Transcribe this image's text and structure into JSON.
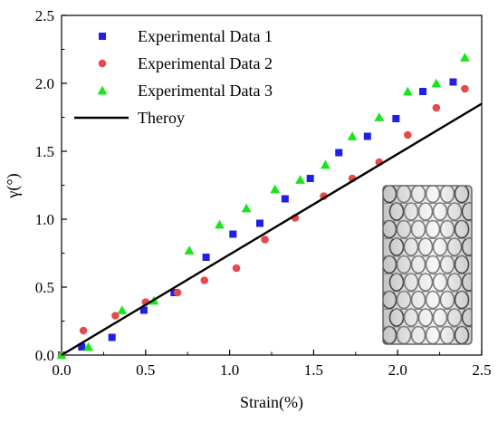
{
  "chart_data": {
    "type": "scatter",
    "title": "",
    "xlabel": "Strain(%)",
    "ylabel": "γ(°)",
    "xlim": [
      0,
      2.5
    ],
    "ylim": [
      0,
      2.5
    ],
    "x_ticks": [
      "0.0",
      "0.5",
      "1.0",
      "1.5",
      "2.0",
      "2.5"
    ],
    "y_ticks": [
      "0.0",
      "0.5",
      "1.0",
      "1.5",
      "2.0",
      "2.5"
    ],
    "x_tick_values": [
      0,
      0.5,
      1.0,
      1.5,
      2.0,
      2.5
    ],
    "y_tick_values": [
      0,
      0.5,
      1.0,
      1.5,
      2.0,
      2.5
    ],
    "grid": false,
    "legend_position": "top-left",
    "inset_image": "nanotube-structure",
    "series": [
      {
        "name": "Experimental Data 1",
        "marker": "square",
        "color": "#1f1fe6",
        "points": [
          [
            0.0,
            0.0
          ],
          [
            0.12,
            0.06
          ],
          [
            0.3,
            0.13
          ],
          [
            0.49,
            0.33
          ],
          [
            0.67,
            0.46
          ],
          [
            0.86,
            0.72
          ],
          [
            1.02,
            0.89
          ],
          [
            1.18,
            0.97
          ],
          [
            1.33,
            1.15
          ],
          [
            1.48,
            1.3
          ],
          [
            1.65,
            1.49
          ],
          [
            1.82,
            1.61
          ],
          [
            1.99,
            1.74
          ],
          [
            2.15,
            1.94
          ],
          [
            2.33,
            2.01
          ]
        ]
      },
      {
        "name": "Experimental Data 2",
        "marker": "circle",
        "color": "#e64a4a",
        "points": [
          [
            0.0,
            0.0
          ],
          [
            0.13,
            0.18
          ],
          [
            0.32,
            0.29
          ],
          [
            0.5,
            0.39
          ],
          [
            0.69,
            0.46
          ],
          [
            0.85,
            0.55
          ],
          [
            1.04,
            0.64
          ],
          [
            1.21,
            0.85
          ],
          [
            1.39,
            1.01
          ],
          [
            1.56,
            1.17
          ],
          [
            1.73,
            1.3
          ],
          [
            1.89,
            1.42
          ],
          [
            2.06,
            1.62
          ],
          [
            2.23,
            1.82
          ],
          [
            2.4,
            1.96
          ]
        ]
      },
      {
        "name": "Experimental Data 3",
        "marker": "triangle",
        "color": "#19e619",
        "points": [
          [
            0.0,
            0.0
          ],
          [
            0.16,
            0.06
          ],
          [
            0.36,
            0.33
          ],
          [
            0.55,
            0.4
          ],
          [
            0.76,
            0.77
          ],
          [
            0.94,
            0.96
          ],
          [
            1.1,
            1.08
          ],
          [
            1.27,
            1.22
          ],
          [
            1.42,
            1.29
          ],
          [
            1.57,
            1.4
          ],
          [
            1.73,
            1.61
          ],
          [
            1.89,
            1.75
          ],
          [
            2.06,
            1.94
          ],
          [
            2.23,
            2.0
          ],
          [
            2.4,
            2.19
          ]
        ]
      },
      {
        "name": "Theroy",
        "marker": "line",
        "color": "#000000",
        "points": [
          [
            0.0,
            0.0
          ],
          [
            2.5,
            1.85
          ]
        ]
      }
    ]
  }
}
